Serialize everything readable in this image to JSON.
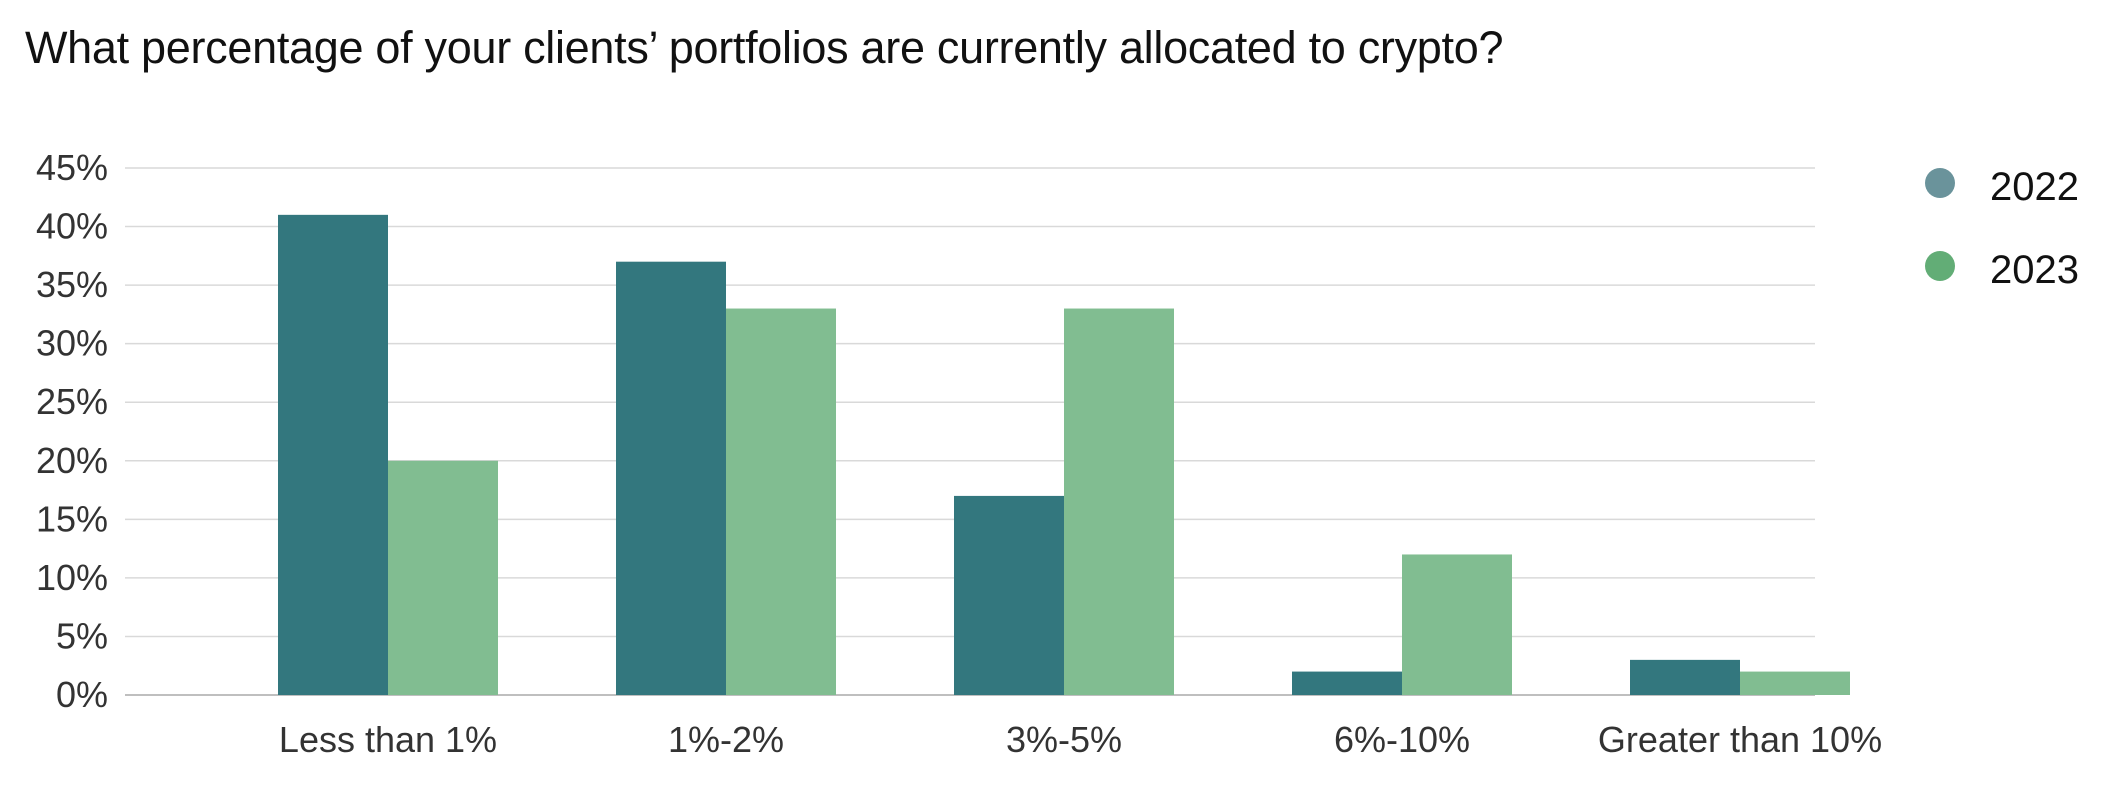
{
  "chart_data": {
    "type": "bar",
    "title": "What percentage of your clients’ portfolios are currently allocated to crypto?",
    "categories": [
      "Less than 1%",
      "1%-2%",
      "3%-5%",
      "6%-10%",
      "Greater than 10%"
    ],
    "series": [
      {
        "name": "2022",
        "values": [
          41,
          37,
          17,
          2,
          3
        ],
        "color": "#33777e",
        "legend_color": "#6a939b"
      },
      {
        "name": "2023",
        "values": [
          20,
          33,
          33,
          12,
          2
        ],
        "color": "#81bd91",
        "legend_color": "#62ad76"
      }
    ],
    "ylim": [
      0,
      45
    ],
    "yticks": [
      0,
      5,
      10,
      15,
      20,
      25,
      30,
      35,
      40,
      45
    ],
    "ytick_labels": [
      "0%",
      "5%",
      "10%",
      "15%",
      "20%",
      "25%",
      "30%",
      "35%",
      "40%",
      "45%"
    ],
    "xlabel": "",
    "ylabel": "",
    "grid": true,
    "legend_position": "right"
  }
}
